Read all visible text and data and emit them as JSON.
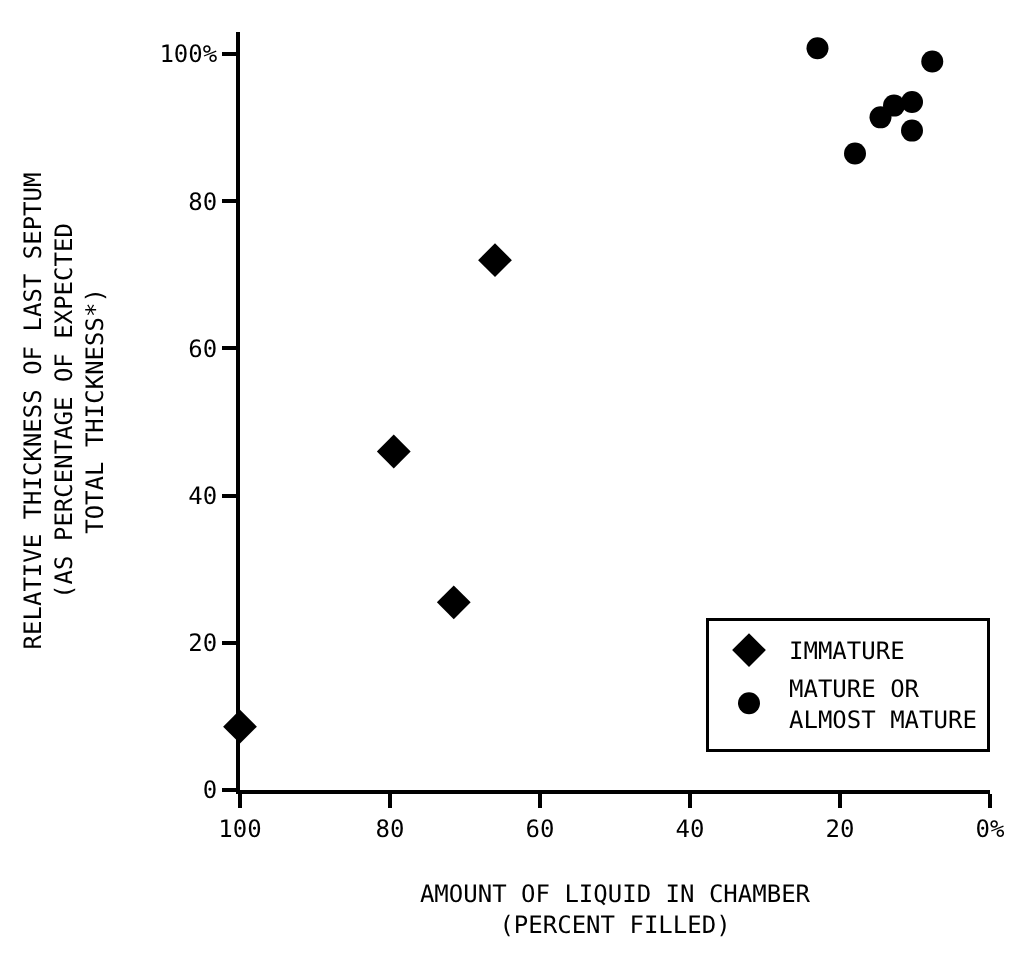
{
  "chart_data": {
    "type": "scatter",
    "xlabel": "AMOUNT OF LIQUID IN CHAMBER\n(PERCENT FILLED)",
    "ylabel": "RELATIVE THICKNESS OF LAST SEPTUM\n(AS PERCENTAGE OF EXPECTED\nTOTAL THICKNESS*)",
    "xlim": [
      100,
      0
    ],
    "ylim": [
      0,
      103
    ],
    "xticks": [
      100,
      80,
      60,
      40,
      20,
      {
        "value": 0,
        "label": "0%"
      }
    ],
    "yticks": [
      0,
      20,
      40,
      60,
      80,
      {
        "value": 100,
        "label": "100%"
      }
    ],
    "legend": "bottom right",
    "series": [
      {
        "name": "IMMATURE",
        "color": "#000000",
        "marker": "diamond",
        "x": [
          100,
          79.5,
          71.5,
          66
        ],
        "values": [
          8.6,
          46,
          25.5,
          72
        ]
      },
      {
        "name": "MATURE OR\nALMOST MATURE",
        "color": "#000000",
        "marker": "circle",
        "x": [
          23,
          18,
          14.6,
          12.8,
          10.4,
          10.4,
          7.7
        ],
        "values": [
          100.8,
          86.5,
          91.4,
          93,
          93.5,
          89.6,
          99
        ]
      }
    ]
  }
}
